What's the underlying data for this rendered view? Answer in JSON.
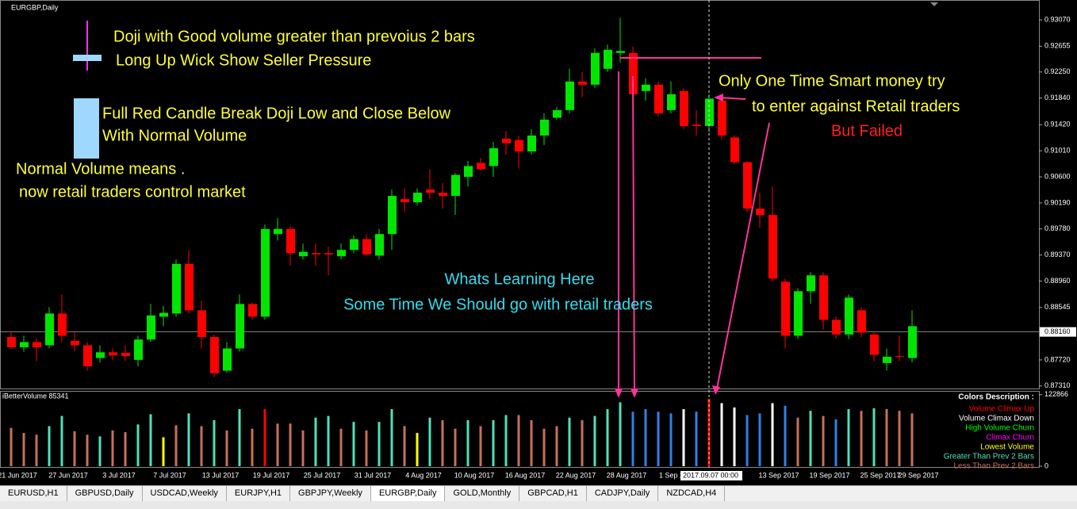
{
  "window_title": "EURGBP,Daily",
  "chart_data": [
    {
      "type": "candlestick",
      "up_color": "#00e600",
      "down_color": "#ff0000",
      "categories": [
        "21 Jun 2017",
        null,
        null,
        null,
        "27 Jun 2017",
        null,
        null,
        null,
        "3 Jul 2017",
        null,
        null,
        null,
        "7 Jul 2017",
        null,
        null,
        null,
        "13 Jul 2017",
        null,
        null,
        null,
        "19 Jul 2017",
        null,
        null,
        null,
        "25 Jul 2017",
        null,
        null,
        null,
        "31 Jul 2017",
        null,
        null,
        null,
        "4 Aug 2017",
        null,
        null,
        null,
        "10 Aug 2017",
        null,
        null,
        null,
        "16 Aug 2017",
        null,
        null,
        null,
        "22 Aug 2017",
        null,
        null,
        null,
        "28 Aug 2017",
        null,
        null,
        null,
        "1 Sep 2017",
        null,
        null,
        null,
        null,
        null,
        null,
        null,
        "13 Sep 2017",
        null,
        null,
        null,
        "19 Sep 2017",
        null,
        null,
        null,
        "25 Sep 2017",
        null,
        null,
        "29 Sep 2017"
      ],
      "open": [
        0.8808,
        0.8792,
        0.88,
        0.8795,
        0.8845,
        0.8802,
        0.8795,
        0.8775,
        0.8784,
        0.8783,
        0.8772,
        0.8804,
        0.884,
        0.8845,
        0.8923,
        0.885,
        0.8808,
        0.8755,
        0.879,
        0.886,
        0.884,
        0.897,
        0.8978,
        0.8935,
        0.894,
        0.894,
        0.8935,
        0.8945,
        0.8962,
        0.8936,
        0.897,
        0.9025,
        0.902,
        0.904,
        0.9035,
        0.903,
        0.906,
        0.9082,
        0.9077,
        0.912,
        0.9118,
        0.91,
        0.9125,
        0.9153,
        0.9165,
        0.921,
        0.9205,
        0.923,
        0.9255,
        0.9255,
        0.9195,
        0.9205,
        0.9165,
        0.9195,
        0.9142,
        0.914,
        0.918,
        0.9122,
        0.9083,
        0.901,
        0.9,
        0.8895,
        0.881,
        0.888,
        0.8905,
        0.8835,
        0.8812,
        0.885,
        0.8812,
        0.8767,
        0.8778,
        0.8775
      ],
      "high": [
        0.8817,
        0.881,
        0.8806,
        0.8855,
        0.8875,
        0.8815,
        0.88,
        0.8795,
        0.879,
        0.8795,
        0.881,
        0.886,
        0.8857,
        0.893,
        0.8945,
        0.8865,
        0.8812,
        0.88,
        0.8875,
        0.8862,
        0.8985,
        0.8995,
        0.8982,
        0.8955,
        0.8955,
        0.895,
        0.8955,
        0.8968,
        0.897,
        0.8978,
        0.904,
        0.9042,
        0.9042,
        0.9072,
        0.905,
        0.9066,
        0.9085,
        0.909,
        0.9115,
        0.9132,
        0.9125,
        0.9135,
        0.916,
        0.917,
        0.923,
        0.9225,
        0.9262,
        0.9268,
        0.931,
        0.9265,
        0.9215,
        0.921,
        0.921,
        0.92,
        0.9165,
        0.919,
        0.9188,
        0.9125,
        0.9085,
        0.9035,
        0.9045,
        0.89,
        0.8885,
        0.891,
        0.891,
        0.884,
        0.8875,
        0.8855,
        0.8815,
        0.879,
        0.881,
        0.885
      ],
      "low": [
        0.8789,
        0.8785,
        0.877,
        0.879,
        0.88,
        0.8785,
        0.8755,
        0.8768,
        0.8772,
        0.877,
        0.8762,
        0.88,
        0.8825,
        0.884,
        0.8845,
        0.879,
        0.8745,
        0.8752,
        0.8785,
        0.8835,
        0.8835,
        0.896,
        0.892,
        0.893,
        0.892,
        0.8905,
        0.893,
        0.894,
        0.8935,
        0.893,
        0.8945,
        0.9005,
        0.9015,
        0.9025,
        0.901,
        0.9,
        0.9045,
        0.907,
        0.906,
        0.9095,
        0.9073,
        0.9095,
        0.911,
        0.915,
        0.916,
        0.9185,
        0.92,
        0.9225,
        0.924,
        0.9185,
        0.918,
        0.9155,
        0.916,
        0.9135,
        0.9125,
        0.913,
        0.9118,
        0.908,
        0.9005,
        0.898,
        0.8895,
        0.879,
        0.8805,
        0.886,
        0.882,
        0.8805,
        0.8805,
        0.8808,
        0.877,
        0.8755,
        0.877,
        0.8768
      ],
      "close": [
        0.8792,
        0.88,
        0.8792,
        0.8845,
        0.881,
        0.8795,
        0.8762,
        0.8784,
        0.8779,
        0.8778,
        0.8804,
        0.8842,
        0.8846,
        0.8923,
        0.885,
        0.8808,
        0.8751,
        0.879,
        0.886,
        0.884,
        0.8978,
        0.8978,
        0.894,
        0.8942,
        0.8938,
        0.8938,
        0.8945,
        0.8962,
        0.8938,
        0.897,
        0.903,
        0.902,
        0.9035,
        0.9035,
        0.903,
        0.9063,
        0.9077,
        0.9072,
        0.9105,
        0.9113,
        0.91,
        0.9125,
        0.915,
        0.9165,
        0.921,
        0.9205,
        0.9255,
        0.926,
        0.9258,
        0.919,
        0.9205,
        0.916,
        0.919,
        0.914,
        0.914,
        0.9183,
        0.9125,
        0.9083,
        0.901,
        0.9,
        0.89,
        0.881,
        0.888,
        0.8905,
        0.8835,
        0.8812,
        0.887,
        0.8815,
        0.878,
        0.8777,
        0.8777,
        0.8825
      ],
      "ylim": [
        0.8727,
        0.9332
      ],
      "yticks": [
        {
          "value": 0.9307,
          "label": "0.93070"
        },
        {
          "value": 0.92655,
          "label": "0.92655"
        },
        {
          "value": 0.9225,
          "label": "0.92250"
        },
        {
          "value": 0.9184,
          "label": "0.91840"
        },
        {
          "value": 0.9142,
          "label": "0.91420"
        },
        {
          "value": 0.9101,
          "label": "0.91010"
        },
        {
          "value": 0.906,
          "label": "0.90600"
        },
        {
          "value": 0.9019,
          "label": "0.90190"
        },
        {
          "value": 0.8978,
          "label": "0.89780"
        },
        {
          "value": 0.8937,
          "label": "0.89370"
        },
        {
          "value": 0.8896,
          "label": "0.88960"
        },
        {
          "value": 0.88545,
          "label": "0.88545"
        },
        {
          "value": 0.8772,
          "label": "0.87720"
        },
        {
          "value": 0.8731,
          "label": "0.87310"
        }
      ],
      "current_price": {
        "value": 0.8816,
        "label": "0.88160"
      },
      "crosshair_label": "2017.09.07 00:00"
    },
    {
      "type": "bar",
      "title": "iBetterVolume 85341",
      "values": [
        65800,
        57100,
        54100,
        68800,
        86300,
        60000,
        54100,
        51200,
        61400,
        58500,
        71700,
        89200,
        49700,
        70200,
        90700,
        68800,
        79000,
        61400,
        98000,
        64400,
        98000,
        73200,
        73200,
        61400,
        83400,
        86300,
        64400,
        76100,
        61400,
        76100,
        98000,
        68800,
        57100,
        83400,
        79000,
        64400,
        79000,
        68800,
        79000,
        87800,
        87800,
        79000,
        64400,
        68800,
        83400,
        79000,
        86300,
        98000,
        109700,
        93600,
        98000,
        93600,
        90700,
        98000,
        93600,
        115600,
        108300,
        100900,
        87800,
        90700,
        108300,
        103900,
        83400,
        95100,
        86300,
        80500,
        98000,
        95100,
        99500,
        98000,
        95100,
        90700
      ],
      "colors": [
        "#c8705a",
        "#c8705a",
        "#c8705a",
        "#50e0b8",
        "#50e0b8",
        "#c8705a",
        "#c8705a",
        "#50e0b8",
        "#c8705a",
        "#c8705a",
        "#50e0b8",
        "#50e0b8",
        "#ffff00",
        "#c8705a",
        "#50e0b8",
        "#c8705a",
        "#50e0b8",
        "#c8705a",
        "#50e0b8",
        "#c8705a",
        "#ff0000",
        "#c8705a",
        "#c8705a",
        "#c8705a",
        "#50e0b8",
        "#50e0b8",
        "#c8705a",
        "#50e0b8",
        "#c8705a",
        "#50e0b8",
        "#50e0b8",
        "#c8705a",
        "#ffff00",
        "#50e0b8",
        "#c8705a",
        "#c8705a",
        "#50e0b8",
        "#c8705a",
        "#50e0b8",
        "#50e0b8",
        "#c8705a",
        "#c8705a",
        "#c8705a",
        "#c8705a",
        "#50e0b8",
        "#c8705a",
        "#50e0b8",
        "#50e0b8",
        "#50e0b8",
        "#2f80e8",
        "#2f80e8",
        "#2f80e8",
        "#2f80e8",
        "#ffffff",
        "#2f80e8",
        "#ff0000",
        "#ffffff",
        "#ffffff",
        "#2f80e8",
        "#2f80e8",
        "#ffffff",
        "#2f80e8",
        "#c8705a",
        "#50e0b8",
        "#c8705a",
        "#2f80e8",
        "#50e0b8",
        "#c8705a",
        "#50e0b8",
        "#c8705a",
        "#c8705a",
        "#c8705a"
      ],
      "ylim": [
        0,
        128000
      ],
      "yticks": [
        122866,
        0
      ],
      "legend_title": "Colors Description :",
      "legend": [
        {
          "name": "Volume Climax Up",
          "color": "#ff0000"
        },
        {
          "name": "Volume Climax Down",
          "color": "#ffffff"
        },
        {
          "name": "High Volume Churn",
          "color": "#00ff00"
        },
        {
          "name": "Climax Churn",
          "color": "#ff00ff"
        },
        {
          "name": "Lowest Volume",
          "color": "#ffff00"
        },
        {
          "name": "Greater Than Prev 2 Bars",
          "color": "#50e0b8"
        },
        {
          "name": "Less Than Prev 2 Bars",
          "color": "#c8705a"
        }
      ]
    }
  ],
  "annotations": [
    {
      "text": "Doji with Good volume greater than prevoius 2 bars",
      "color": "#ffff33"
    },
    {
      "text": "Long Up Wick Show Seller Pressure",
      "color": "#ffff33"
    },
    {
      "text": "Full Red Candle Break Doji Low and Close Below",
      "color": "#ffff33"
    },
    {
      "text": "With Normal Volume",
      "color": "#ffff33"
    },
    {
      "text": "Normal Volume means .",
      "color": "#ffff33"
    },
    {
      "text": "now retail traders control market",
      "color": "#ffff33"
    },
    {
      "text": "Whats Learning Here",
      "color": "#33ddee"
    },
    {
      "text": "Some Time We Should go with retail traders",
      "color": "#33ddee"
    },
    {
      "text": "Only One Time Smart money try",
      "color": "#ffff33"
    },
    {
      "text": "to enter against Retail traders",
      "color": "#ffff33"
    },
    {
      "text": "But Failed",
      "color": "#ff2020"
    }
  ],
  "tabs": [
    "EURUSD,H1",
    "GBPUSD,Daily",
    "USDCAD,Weekly",
    "EURJPY,H1",
    "GBPJPY,Weekly",
    "EURGBP,Daily",
    "GOLD,Monthly",
    "GBPCAD,H1",
    "CADJPY,Daily",
    "NZDCAD,H4"
  ],
  "active_tab": "EURGBP,Daily"
}
